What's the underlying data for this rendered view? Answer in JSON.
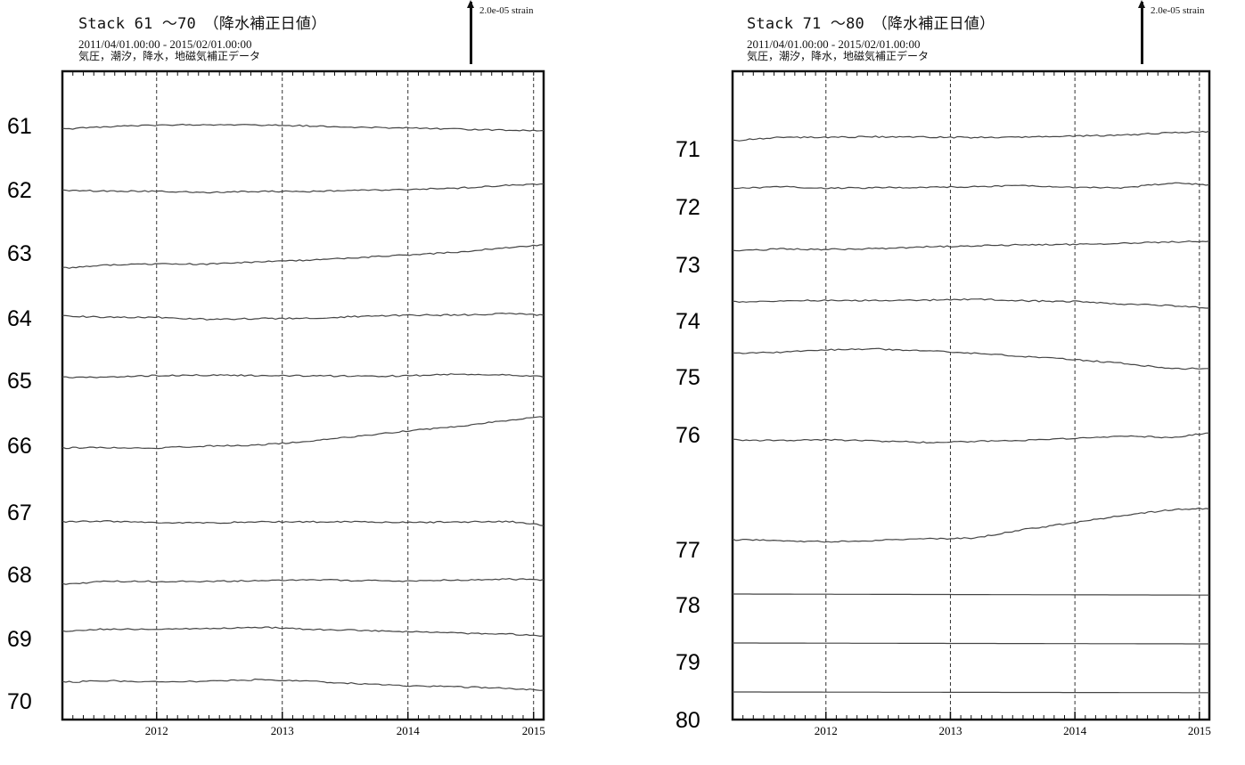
{
  "chart_data": [
    {
      "type": "line",
      "title": "Stack 61 ～70　（降水補正日値）",
      "subtitle_lines": [
        "2011/04/01.00:00 - 2015/02/01.00:00",
        "気圧，潮汐，降水，地磁気補正データ"
      ],
      "scale_label": "2.0e-05 strain",
      "x_ticks": [
        "2012",
        "2013",
        "2014",
        "2015"
      ],
      "x_tick_values": [
        2012.0,
        2013.0,
        2014.0,
        2015.0
      ],
      "xlim": [
        2011.25,
        2015.08
      ],
      "series": [
        {
          "name": "61",
          "x": [
            2011.25,
            2011.6,
            2012.0,
            2012.4,
            2012.8,
            2013.2,
            2013.6,
            2014.0,
            2014.4,
            2014.8,
            2015.08
          ],
          "y": [
            0.0,
            0.14,
            0.22,
            0.26,
            0.24,
            0.18,
            0.1,
            0.06,
            0.0,
            -0.06,
            -0.1
          ]
        },
        {
          "name": "62",
          "x": [
            2011.25,
            2011.6,
            2012.0,
            2012.4,
            2012.8,
            2013.2,
            2013.6,
            2014.0,
            2014.4,
            2014.8,
            2015.08
          ],
          "y": [
            0.0,
            -0.02,
            -0.04,
            -0.1,
            -0.04,
            -0.06,
            0.02,
            0.06,
            0.14,
            0.3,
            0.36
          ]
        },
        {
          "name": "63",
          "x": [
            2011.25,
            2011.6,
            2012.0,
            2012.4,
            2012.8,
            2013.2,
            2013.6,
            2014.0,
            2014.4,
            2014.8,
            2015.08
          ],
          "y": [
            0.0,
            0.16,
            0.22,
            0.22,
            0.34,
            0.44,
            0.58,
            0.74,
            0.9,
            1.16,
            1.3
          ]
        },
        {
          "name": "64",
          "x": [
            2011.25,
            2011.6,
            2012.0,
            2012.4,
            2012.8,
            2013.2,
            2013.6,
            2014.0,
            2014.4,
            2014.8,
            2015.08
          ],
          "y": [
            0.0,
            -0.06,
            -0.06,
            -0.18,
            -0.14,
            -0.12,
            -0.02,
            0.06,
            0.06,
            0.14,
            0.06
          ]
        },
        {
          "name": "65",
          "x": [
            2011.25,
            2011.6,
            2012.0,
            2012.4,
            2012.8,
            2013.2,
            2013.6,
            2014.0,
            2014.4,
            2014.8,
            2015.08
          ],
          "y": [
            0.0,
            0.04,
            0.12,
            0.14,
            0.12,
            0.1,
            0.08,
            0.1,
            0.2,
            0.16,
            0.04
          ]
        },
        {
          "name": "66",
          "x": [
            2011.25,
            2011.6,
            2012.0,
            2012.4,
            2012.8,
            2013.2,
            2013.6,
            2014.0,
            2014.4,
            2014.8,
            2015.08
          ],
          "y": [
            0.0,
            0.02,
            0.0,
            0.1,
            0.16,
            0.36,
            0.66,
            0.96,
            1.22,
            1.56,
            1.74
          ]
        },
        {
          "name": "67",
          "x": [
            2011.25,
            2011.6,
            2012.0,
            2012.4,
            2012.8,
            2013.2,
            2013.6,
            2014.0,
            2014.4,
            2014.8,
            2015.08
          ],
          "y": [
            0.0,
            0.04,
            -0.04,
            -0.06,
            0.0,
            0.0,
            0.02,
            -0.04,
            0.0,
            0.02,
            -0.18
          ]
        },
        {
          "name": "68",
          "x": [
            2011.25,
            2011.6,
            2012.0,
            2012.4,
            2012.8,
            2013.2,
            2013.6,
            2014.0,
            2014.4,
            2014.8,
            2015.08
          ],
          "y": [
            0.0,
            0.16,
            0.16,
            0.16,
            0.2,
            0.26,
            0.2,
            0.18,
            0.24,
            0.28,
            0.24
          ]
        },
        {
          "name": "69",
          "x": [
            2011.25,
            2011.6,
            2012.0,
            2012.4,
            2012.8,
            2013.2,
            2013.6,
            2014.0,
            2014.4,
            2014.8,
            2015.08
          ],
          "y": [
            0.0,
            0.14,
            0.12,
            0.16,
            0.24,
            0.12,
            0.06,
            -0.02,
            -0.1,
            -0.14,
            -0.26
          ]
        },
        {
          "name": "70",
          "x": [
            2011.25,
            2011.6,
            2012.0,
            2012.4,
            2012.8,
            2013.2,
            2013.6,
            2014.0,
            2014.4,
            2014.8,
            2015.08
          ],
          "y": [
            0.0,
            0.08,
            0.02,
            0.04,
            0.14,
            0.06,
            -0.08,
            -0.2,
            -0.26,
            -0.34,
            -0.46
          ]
        }
      ]
    },
    {
      "type": "line",
      "title": "Stack 71 ～80　（降水補正日値）",
      "subtitle_lines": [
        "2011/04/01.00:00 - 2015/02/01.00:00",
        "気圧，潮汐，降水，地磁気補正データ"
      ],
      "scale_label": "2.0e-05 strain",
      "x_ticks": [
        "2012",
        "2013",
        "2014",
        "2015"
      ],
      "x_tick_values": [
        2012.0,
        2013.0,
        2014.0,
        2015.0
      ],
      "xlim": [
        2011.25,
        2015.08
      ],
      "series": [
        {
          "name": "71",
          "x": [
            2011.25,
            2011.6,
            2012.0,
            2012.4,
            2012.8,
            2013.2,
            2013.6,
            2014.0,
            2014.4,
            2014.8,
            2015.08
          ],
          "y": [
            0.0,
            0.18,
            0.2,
            0.22,
            0.2,
            0.18,
            0.2,
            0.26,
            0.32,
            0.46,
            0.52
          ]
        },
        {
          "name": "72",
          "x": [
            2011.25,
            2011.6,
            2012.0,
            2012.4,
            2012.8,
            2013.2,
            2013.6,
            2014.0,
            2014.4,
            2014.8,
            2015.08
          ],
          "y": [
            0.0,
            0.12,
            0.04,
            0.06,
            0.08,
            0.12,
            0.18,
            0.06,
            0.06,
            0.34,
            0.22
          ]
        },
        {
          "name": "73",
          "x": [
            2011.25,
            2011.6,
            2012.0,
            2012.4,
            2012.8,
            2013.2,
            2013.6,
            2014.0,
            2014.4,
            2014.8,
            2015.08
          ],
          "y": [
            0.0,
            0.12,
            0.1,
            0.14,
            0.24,
            0.3,
            0.36,
            0.38,
            0.44,
            0.52,
            0.56
          ]
        },
        {
          "name": "74",
          "x": [
            2011.25,
            2011.6,
            2012.0,
            2012.4,
            2012.8,
            2013.2,
            2013.6,
            2014.0,
            2014.4,
            2014.8,
            2015.08
          ],
          "y": [
            0.0,
            0.06,
            0.08,
            0.08,
            0.1,
            0.16,
            0.06,
            0.02,
            -0.12,
            -0.22,
            -0.34
          ]
        },
        {
          "name": "75",
          "x": [
            2011.25,
            2011.6,
            2012.0,
            2012.4,
            2012.8,
            2013.2,
            2013.6,
            2014.0,
            2014.4,
            2014.8,
            2015.08
          ],
          "y": [
            0.0,
            0.06,
            0.2,
            0.26,
            0.16,
            0.02,
            -0.18,
            -0.34,
            -0.56,
            -0.86,
            -0.82
          ]
        },
        {
          "name": "76",
          "x": [
            2011.25,
            2011.6,
            2012.0,
            2012.4,
            2012.8,
            2013.2,
            2013.6,
            2014.0,
            2014.4,
            2014.8,
            2015.08
          ],
          "y": [
            0.0,
            -0.04,
            0.02,
            -0.06,
            -0.14,
            -0.08,
            -0.02,
            0.08,
            0.22,
            0.14,
            0.42
          ]
        },
        {
          "name": "77",
          "x": [
            2011.25,
            2011.6,
            2012.0,
            2012.4,
            2012.8,
            2013.2,
            2013.6,
            2014.0,
            2014.4,
            2014.8,
            2015.08
          ],
          "y": [
            0.0,
            -0.04,
            -0.12,
            -0.04,
            0.04,
            0.1,
            0.58,
            0.96,
            1.38,
            1.7,
            1.76
          ]
        },
        {
          "name": "78",
          "x": [
            2011.25,
            2015.08
          ],
          "y": [
            0.0,
            -0.06
          ]
        },
        {
          "name": "79",
          "x": [
            2011.25,
            2015.08
          ],
          "y": [
            0.0,
            -0.05
          ]
        },
        {
          "name": "80",
          "x": [
            2011.25,
            2015.08
          ],
          "y": [
            0.0,
            -0.04
          ]
        }
      ]
    }
  ]
}
